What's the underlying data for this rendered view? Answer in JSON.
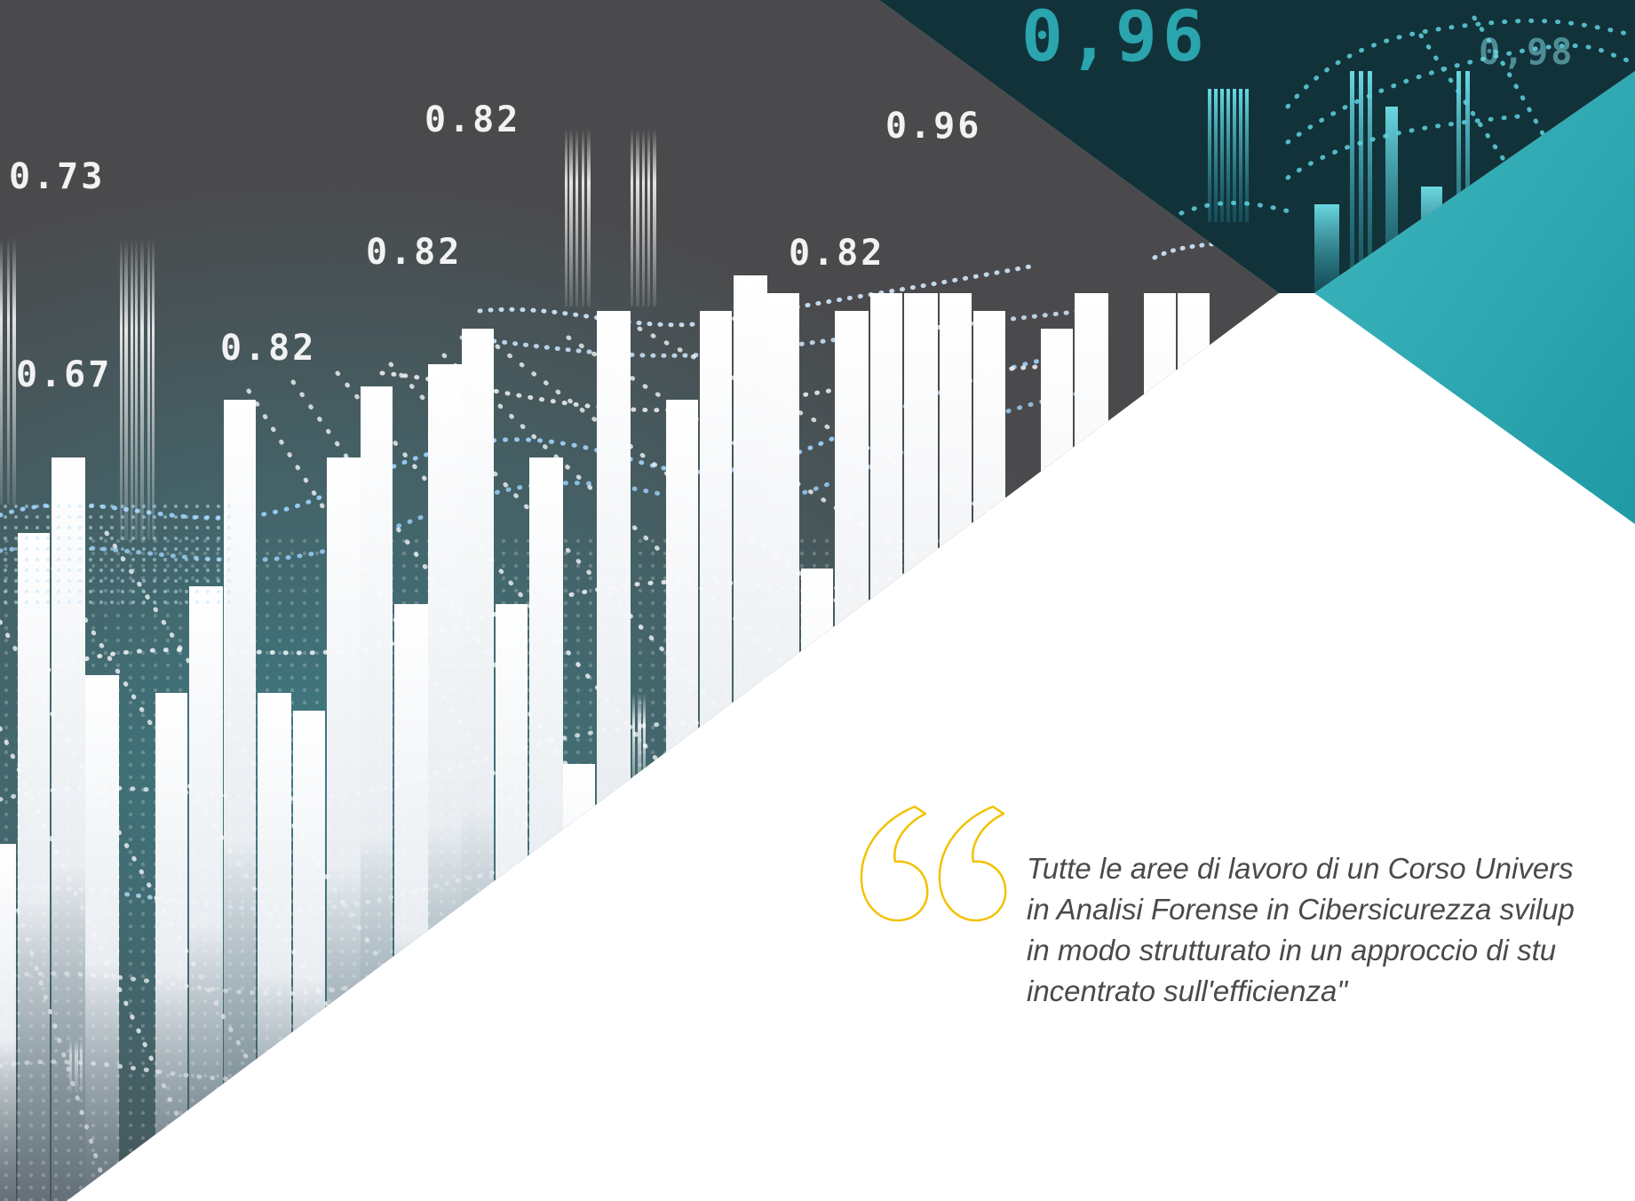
{
  "figure": {
    "labels": [
      "0.73",
      "0.67",
      "0.82",
      "0.82",
      "0.82",
      "0.96",
      "0.82",
      "0,96",
      "0,98"
    ]
  },
  "quote": {
    "lines": [
      "Tutte le aree di lavoro di un Corso Univers",
      "in Analisi Forense in Cibersicurezza svilup",
      "in modo strutturato in un approccio di stu",
      "incentrato sull'efficienza\""
    ]
  },
  "colors": {
    "dark_background": "#4a4a4c",
    "teal_dark": "#12323a",
    "teal_accent": "#2aa5ae",
    "quote_mark": "#f2c200",
    "bar_white": "#ffffff"
  },
  "icons": {
    "quote_mark": "double-quote-icon"
  }
}
